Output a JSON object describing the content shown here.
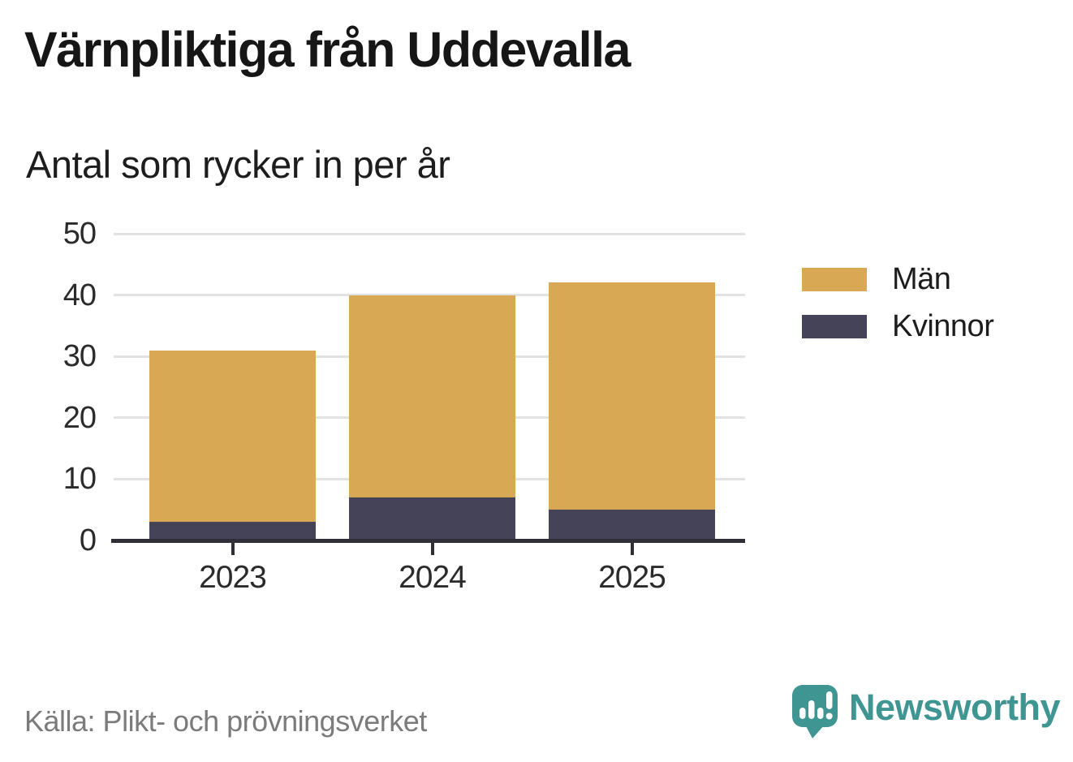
{
  "header": {
    "title": "Värnpliktiga från Uddevalla",
    "subtitle": "Antal som rycker in per år"
  },
  "chart_data": {
    "type": "bar",
    "stacked": true,
    "title": "Värnpliktiga från Uddevalla",
    "subtitle": "Antal som rycker in per år",
    "categories": [
      "2023",
      "2024",
      "2025"
    ],
    "series": [
      {
        "name": "Män",
        "color": "#d8a855",
        "values": [
          28,
          33,
          37
        ]
      },
      {
        "name": "Kvinnor",
        "color": "#444357",
        "values": [
          3,
          7,
          5
        ]
      }
    ],
    "stack_bottom_to_top": [
      "Kvinnor",
      "Män"
    ],
    "stacked_totals": [
      31,
      40,
      42
    ],
    "xlabel": "",
    "ylabel": "",
    "ylim": [
      0,
      50
    ],
    "yticks": [
      0,
      10,
      20,
      30,
      40,
      50
    ],
    "grid": "horizontal",
    "legend_position": "right"
  },
  "footer": {
    "source": "Källa: Plikt- och prövningsverket",
    "brand": "Newsworthy",
    "brand_icon": "speech-bubble-bar-chart-icon"
  },
  "colors": {
    "men_bar": "#d8a855",
    "women_bar": "#444357",
    "axis": "#302f38",
    "gridline": "#e2e2e2",
    "brand_teal": "#3e9591",
    "title_text": "#161616",
    "axis_label_text": "#2b2b2b",
    "source_text": "#7b7b7b"
  }
}
